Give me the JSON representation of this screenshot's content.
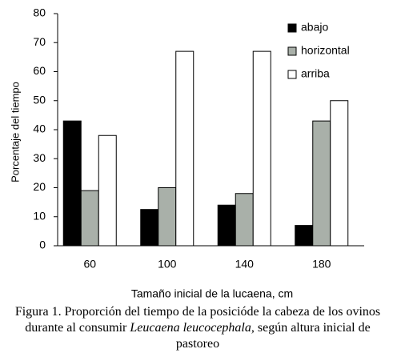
{
  "chart_data": {
    "type": "bar",
    "y_label": "Porcentaje del tiempo",
    "x_label": "Tamaño inicial de la lucaena, cm",
    "categories": [
      "60",
      "100",
      "140",
      "180"
    ],
    "series": [
      {
        "name": "abajo",
        "color": "#000000",
        "values": [
          43,
          12.5,
          14,
          7
        ]
      },
      {
        "name": "horizontal",
        "color": "#a9b0a9",
        "values": [
          19,
          20,
          18,
          43
        ]
      },
      {
        "name": "arriba",
        "color": "#ffffff",
        "values": [
          38,
          67,
          67,
          50
        ]
      }
    ],
    "ylim": [
      0,
      80
    ],
    "yticks": [
      0,
      10,
      20,
      30,
      40,
      50,
      60,
      70,
      80
    ],
    "grid": false,
    "legend": "top-right"
  },
  "caption": [
    "Figura 1. Proporción del tiempo de la posicióde la cabeza de los ovinos durante al consumir ",
    "Leucaena leucocephala,",
    " según altura inicial de pastoreo"
  ]
}
